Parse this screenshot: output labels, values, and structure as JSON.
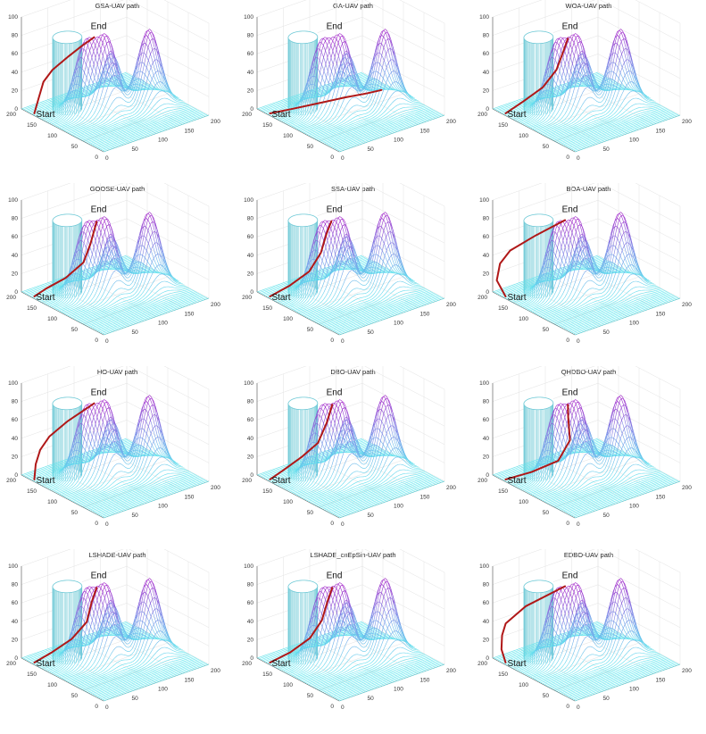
{
  "chart_data": [
    {
      "type": "surface3d",
      "title": "GSA-UAV path",
      "path": "gsa"
    },
    {
      "type": "surface3d",
      "title": "GA-UAV path",
      "path": "ga"
    },
    {
      "type": "surface3d",
      "title": "WOA-UAV path",
      "path": "woa"
    },
    {
      "type": "surface3d",
      "title": "GOOSE-UAV path",
      "path": "goose"
    },
    {
      "type": "surface3d",
      "title": "SSA-UAV path",
      "path": "ssa"
    },
    {
      "type": "surface3d",
      "title": "BOA-UAV path",
      "path": "boa"
    },
    {
      "type": "surface3d",
      "title": "HO-UAV path",
      "path": "ho"
    },
    {
      "type": "surface3d",
      "title": "DBO-UAV path",
      "path": "dbo"
    },
    {
      "type": "surface3d",
      "title": "QHDBO-UAV path",
      "path": "qhdbo"
    },
    {
      "type": "surface3d",
      "title": "LSHADE-UAV path",
      "path": "lshade"
    },
    {
      "type": "surface3d",
      "title": "LSHADE_cnEpSin-UAV path",
      "path": "lshade_cn"
    },
    {
      "type": "surface3d",
      "title": "EDBO-UAV path",
      "path": "edbo"
    }
  ],
  "shared": {
    "z_ticks": [
      "0",
      "20",
      "40",
      "60",
      "80",
      "100"
    ],
    "y_ticks": [
      "200",
      "150",
      "100",
      "50",
      "0"
    ],
    "x_ticks": [
      "0",
      "50",
      "100",
      "150",
      "200"
    ],
    "start_label": "Start",
    "end_label": "End",
    "colors": {
      "surface_low": "#5fe6ee",
      "surface_high": "#a020c8",
      "path": "#b01818",
      "cylinder": "#6ec9d6",
      "axis": "#555555"
    }
  }
}
